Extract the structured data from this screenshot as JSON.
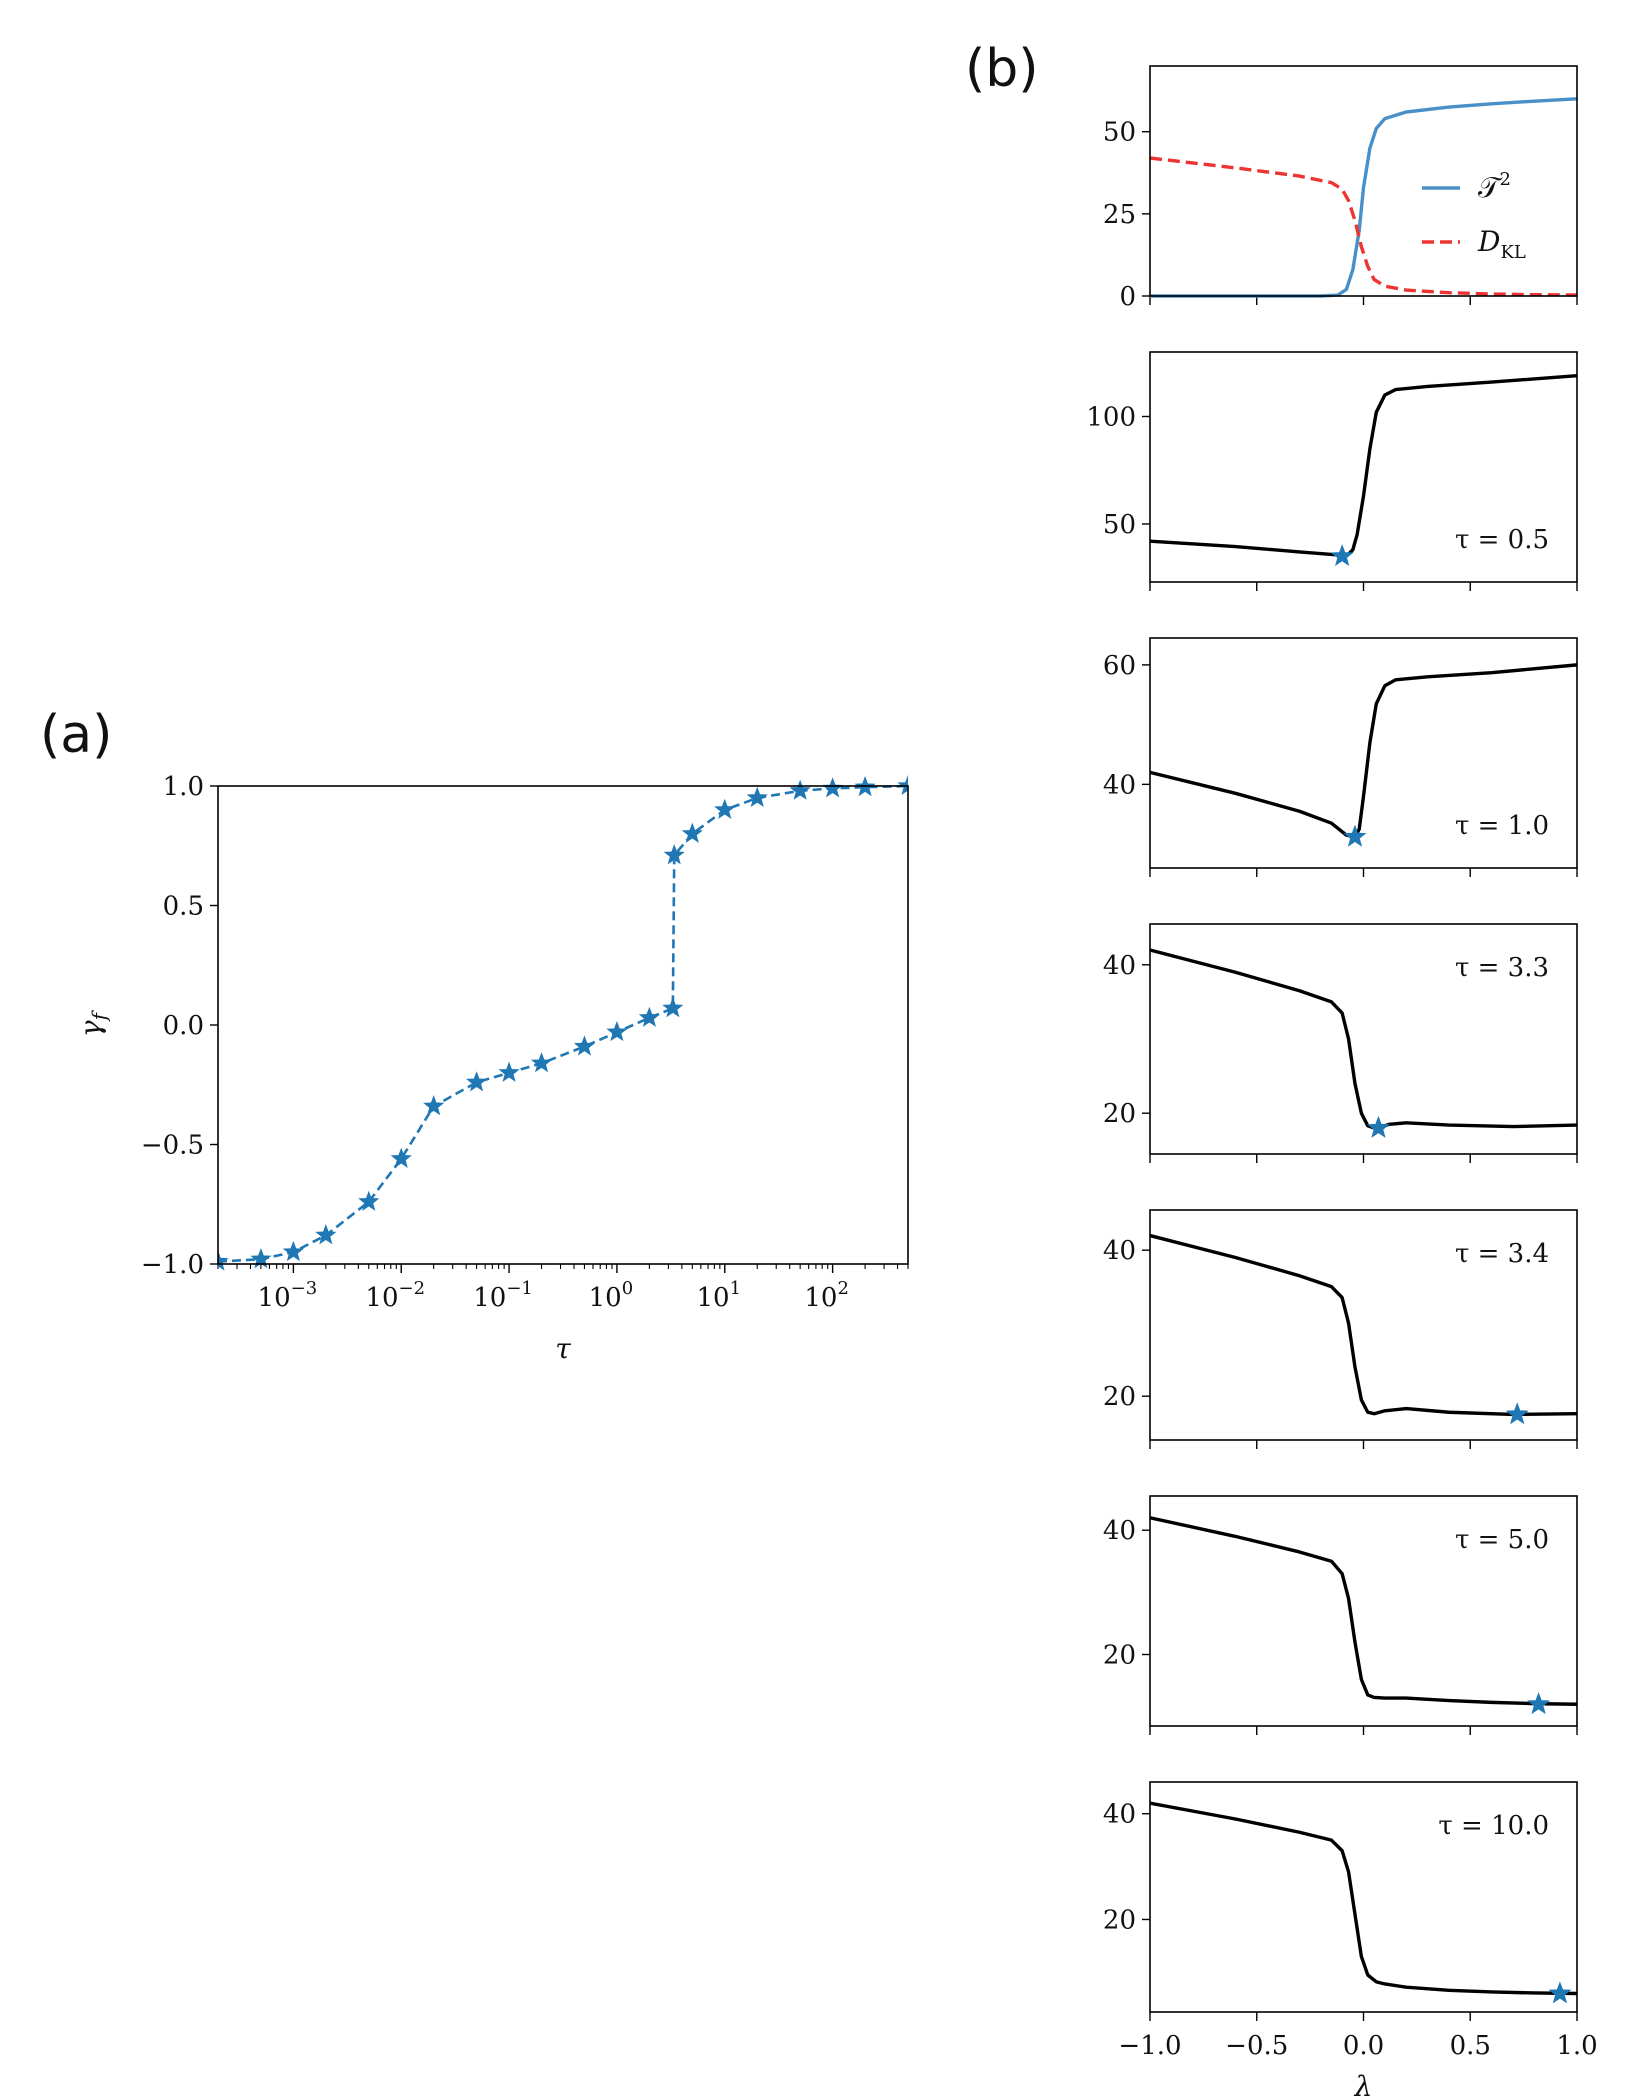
{
  "panel_labels": {
    "a": "(a)",
    "b": "(b)"
  },
  "colors": {
    "blue": "#1f77b4",
    "blue_light": "#4a90c8",
    "red": "#ee3333",
    "black": "#000000"
  },
  "chart_data": [
    {
      "id": "a",
      "type": "line",
      "xscale": "log",
      "xlabel": "τ",
      "ylabel": "γ_f",
      "ylim": [
        -1.0,
        1.0
      ],
      "xlim": [
        0.0002,
        500
      ],
      "yticks": [
        1.0,
        0.5,
        0.0,
        -0.5,
        -1.0
      ],
      "ytick_labels": [
        "1.0",
        "0.5",
        "0.0",
        "−0.5",
        "−1.0"
      ],
      "xticks": [
        {
          "value": 0.001,
          "base": "10",
          "exp": "−3"
        },
        {
          "value": 0.01,
          "base": "10",
          "exp": "−2"
        },
        {
          "value": 0.1,
          "base": "10",
          "exp": "−1"
        },
        {
          "value": 1,
          "base": "10",
          "exp": "0"
        },
        {
          "value": 10,
          "base": "10",
          "exp": "1"
        },
        {
          "value": 100,
          "base": "10",
          "exp": "2"
        }
      ],
      "marker": "star",
      "linestyle": "dashed",
      "x": [
        0.0002,
        0.0005,
        0.001,
        0.002,
        0.005,
        0.01,
        0.02,
        0.05,
        0.1,
        0.2,
        0.5,
        1,
        2,
        3.3,
        3.4,
        5,
        10,
        20,
        50,
        100,
        200,
        500
      ],
      "y": [
        -0.99,
        -0.98,
        -0.95,
        -0.88,
        -0.74,
        -0.56,
        -0.34,
        -0.24,
        -0.2,
        -0.16,
        -0.09,
        -0.03,
        0.03,
        0.07,
        0.71,
        0.8,
        0.9,
        0.95,
        0.98,
        0.99,
        0.995,
        1.0
      ]
    },
    {
      "id": "b0",
      "type": "line",
      "xlim": [
        -1.0,
        1.0
      ],
      "ylim": [
        0,
        70
      ],
      "yticks": [
        0,
        25,
        50
      ],
      "ytick_labels": [
        "0",
        "25",
        "50"
      ],
      "legend": {
        "placement": "right",
        "entries": [
          {
            "label": "𝒯",
            "sup": "2"
          },
          {
            "label": "D",
            "sub": "KL"
          }
        ]
      },
      "series": [
        {
          "name": "T^2",
          "style": "solid",
          "color": "blue_light",
          "points": [
            [
              -1.0,
              0
            ],
            [
              -0.5,
              0
            ],
            [
              -0.2,
              0
            ],
            [
              -0.12,
              0.3
            ],
            [
              -0.08,
              2
            ],
            [
              -0.05,
              8
            ],
            [
              -0.02,
              20
            ],
            [
              0.0,
              33
            ],
            [
              0.03,
              45
            ],
            [
              0.06,
              51
            ],
            [
              0.1,
              54
            ],
            [
              0.2,
              56
            ],
            [
              0.4,
              57.5
            ],
            [
              0.6,
              58.5
            ],
            [
              0.8,
              59.3
            ],
            [
              1.0,
              60
            ]
          ]
        },
        {
          "name": "D_KL",
          "style": "dashed",
          "color": "red",
          "points": [
            [
              -1.0,
              42
            ],
            [
              -0.6,
              39
            ],
            [
              -0.3,
              36.5
            ],
            [
              -0.15,
              34.5
            ],
            [
              -0.1,
              32.5
            ],
            [
              -0.07,
              29
            ],
            [
              -0.04,
              23
            ],
            [
              -0.01,
              15
            ],
            [
              0.02,
              9
            ],
            [
              0.05,
              5
            ],
            [
              0.1,
              3
            ],
            [
              0.2,
              1.8
            ],
            [
              0.4,
              1.0
            ],
            [
              0.6,
              0.6
            ],
            [
              0.8,
              0.4
            ],
            [
              1.0,
              0.3
            ]
          ]
        }
      ]
    },
    {
      "id": "b1",
      "type": "line",
      "annotation": "τ = 0.5",
      "annotation_pos": "bottom-right",
      "xlim": [
        -1.0,
        1.0
      ],
      "ylim": [
        23,
        130
      ],
      "yticks": [
        50,
        100
      ],
      "ytick_labels": [
        "50",
        "100"
      ],
      "points": [
        [
          -1.0,
          42
        ],
        [
          -0.6,
          39.5
        ],
        [
          -0.3,
          37
        ],
        [
          -0.15,
          35.8
        ],
        [
          -0.1,
          35.5
        ],
        [
          -0.07,
          36
        ],
        [
          -0.05,
          38
        ],
        [
          -0.03,
          45
        ],
        [
          0.0,
          63
        ],
        [
          0.03,
          85
        ],
        [
          0.06,
          102
        ],
        [
          0.1,
          110
        ],
        [
          0.15,
          112.5
        ],
        [
          0.3,
          114
        ],
        [
          0.6,
          116
        ],
        [
          1.0,
          119
        ]
      ],
      "star": [
        -0.1,
        35
      ]
    },
    {
      "id": "b2",
      "type": "line",
      "annotation": "τ = 1.0",
      "annotation_pos": "bottom-right",
      "xlim": [
        -1.0,
        1.0
      ],
      "ylim": [
        26,
        64.5
      ],
      "yticks": [
        40,
        60
      ],
      "ytick_labels": [
        "40",
        "60"
      ],
      "points": [
        [
          -1.0,
          42
        ],
        [
          -0.6,
          38.5
        ],
        [
          -0.3,
          35.5
        ],
        [
          -0.15,
          33.5
        ],
        [
          -0.08,
          31.5
        ],
        [
          -0.04,
          31.2
        ],
        [
          -0.02,
          32.5
        ],
        [
          0.0,
          38
        ],
        [
          0.03,
          47
        ],
        [
          0.06,
          53.5
        ],
        [
          0.1,
          56.5
        ],
        [
          0.15,
          57.5
        ],
        [
          0.3,
          58
        ],
        [
          0.6,
          58.7
        ],
        [
          1.0,
          60
        ]
      ],
      "star": [
        -0.04,
        31.2
      ]
    },
    {
      "id": "b3",
      "type": "line",
      "annotation": "τ = 3.3",
      "annotation_pos": "top-right",
      "xlim": [
        -1.0,
        1.0
      ],
      "ylim": [
        14.5,
        45.5
      ],
      "yticks": [
        20,
        40
      ],
      "ytick_labels": [
        "20",
        "40"
      ],
      "points": [
        [
          -1.0,
          42
        ],
        [
          -0.6,
          39
        ],
        [
          -0.3,
          36.5
        ],
        [
          -0.15,
          35
        ],
        [
          -0.1,
          33.5
        ],
        [
          -0.07,
          30
        ],
        [
          -0.04,
          24
        ],
        [
          -0.01,
          20
        ],
        [
          0.02,
          18.3
        ],
        [
          0.05,
          18
        ],
        [
          0.08,
          18.1
        ],
        [
          0.12,
          18.5
        ],
        [
          0.2,
          18.7
        ],
        [
          0.4,
          18.4
        ],
        [
          0.7,
          18.2
        ],
        [
          1.0,
          18.4
        ]
      ],
      "star": [
        0.07,
        18
      ]
    },
    {
      "id": "b4",
      "type": "line",
      "annotation": "τ = 3.4",
      "annotation_pos": "top-right",
      "xlim": [
        -1.0,
        1.0
      ],
      "ylim": [
        14.0,
        45.5
      ],
      "yticks": [
        20,
        40
      ],
      "ytick_labels": [
        "20",
        "40"
      ],
      "points": [
        [
          -1.0,
          42
        ],
        [
          -0.6,
          39
        ],
        [
          -0.3,
          36.5
        ],
        [
          -0.15,
          35
        ],
        [
          -0.1,
          33.5
        ],
        [
          -0.07,
          30
        ],
        [
          -0.04,
          24
        ],
        [
          -0.01,
          19.5
        ],
        [
          0.02,
          17.8
        ],
        [
          0.05,
          17.6
        ],
        [
          0.1,
          18
        ],
        [
          0.2,
          18.3
        ],
        [
          0.4,
          17.8
        ],
        [
          0.7,
          17.5
        ],
        [
          1.0,
          17.6
        ]
      ],
      "star": [
        0.72,
        17.5
      ]
    },
    {
      "id": "b5",
      "type": "line",
      "annotation": "τ = 5.0",
      "annotation_pos": "top-right",
      "xlim": [
        -1.0,
        1.0
      ],
      "ylim": [
        8.5,
        45.5
      ],
      "yticks": [
        20,
        40
      ],
      "ytick_labels": [
        "20",
        "40"
      ],
      "points": [
        [
          -1.0,
          42
        ],
        [
          -0.6,
          39
        ],
        [
          -0.3,
          36.5
        ],
        [
          -0.15,
          35
        ],
        [
          -0.1,
          33
        ],
        [
          -0.07,
          29
        ],
        [
          -0.04,
          22
        ],
        [
          -0.01,
          16
        ],
        [
          0.02,
          13.5
        ],
        [
          0.05,
          13.1
        ],
        [
          0.1,
          13
        ],
        [
          0.2,
          13
        ],
        [
          0.4,
          12.6
        ],
        [
          0.6,
          12.3
        ],
        [
          0.8,
          12.1
        ],
        [
          1.0,
          12
        ]
      ],
      "star": [
        0.82,
        12
      ]
    },
    {
      "id": "b6",
      "type": "line",
      "annotation": "τ = 10.0",
      "annotation_pos": "top-right",
      "xlim": [
        -1.0,
        1.0
      ],
      "ylim": [
        2.5,
        46
      ],
      "yticks": [
        20,
        40
      ],
      "ytick_labels": [
        "20",
        "40"
      ],
      "xticks": [
        -1.0,
        -0.5,
        0.0,
        0.5,
        1.0
      ],
      "xtick_labels": [
        "−1.0",
        "−0.5",
        "0.0",
        "0.5",
        "1.0"
      ],
      "xlabel": "λ",
      "points": [
        [
          -1.0,
          42
        ],
        [
          -0.6,
          39
        ],
        [
          -0.3,
          36.5
        ],
        [
          -0.15,
          35
        ],
        [
          -0.1,
          33
        ],
        [
          -0.07,
          29
        ],
        [
          -0.04,
          21
        ],
        [
          -0.01,
          13
        ],
        [
          0.02,
          9.5
        ],
        [
          0.06,
          8.2
        ],
        [
          0.1,
          7.8
        ],
        [
          0.2,
          7.2
        ],
        [
          0.4,
          6.6
        ],
        [
          0.6,
          6.3
        ],
        [
          0.8,
          6.1
        ],
        [
          1.0,
          6
        ]
      ],
      "star": [
        0.92,
        6
      ]
    }
  ]
}
